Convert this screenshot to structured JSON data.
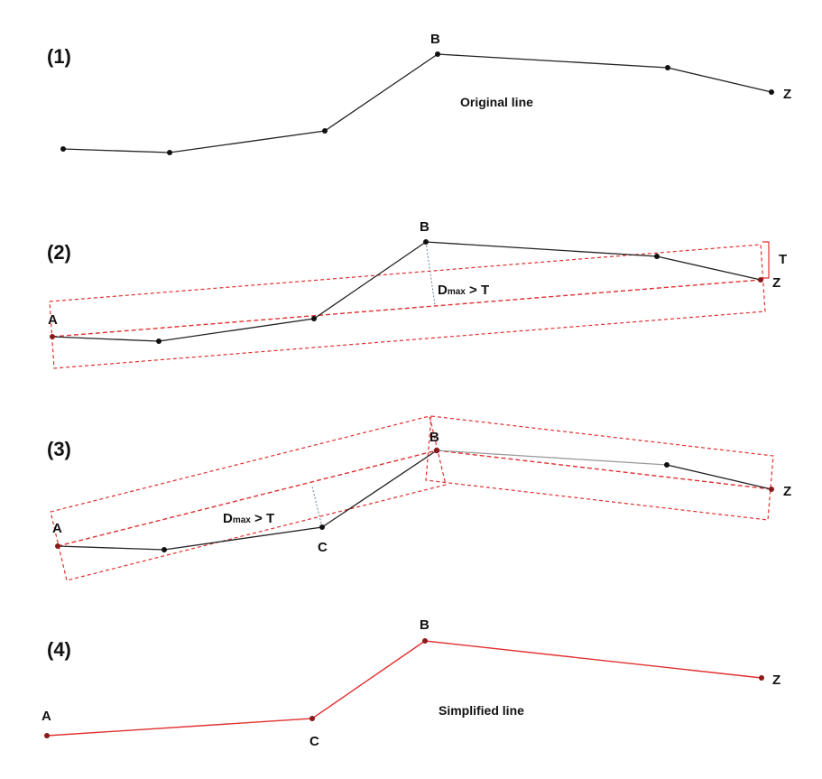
{
  "panels": [
    {
      "number": "(1)",
      "caption": "Original line"
    },
    {
      "number": "(2)",
      "dmax": "D",
      "dmax_sub": "max",
      "dmax_rest": " > T",
      "tolerance": "T"
    },
    {
      "number": "(3)",
      "dmax": "D",
      "dmax_sub": "max",
      "dmax_rest": " > T"
    },
    {
      "number": "(4)",
      "caption": "Simplified line"
    }
  ],
  "points": {
    "a": "A",
    "b": "B",
    "c": "C",
    "z": "Z"
  }
}
